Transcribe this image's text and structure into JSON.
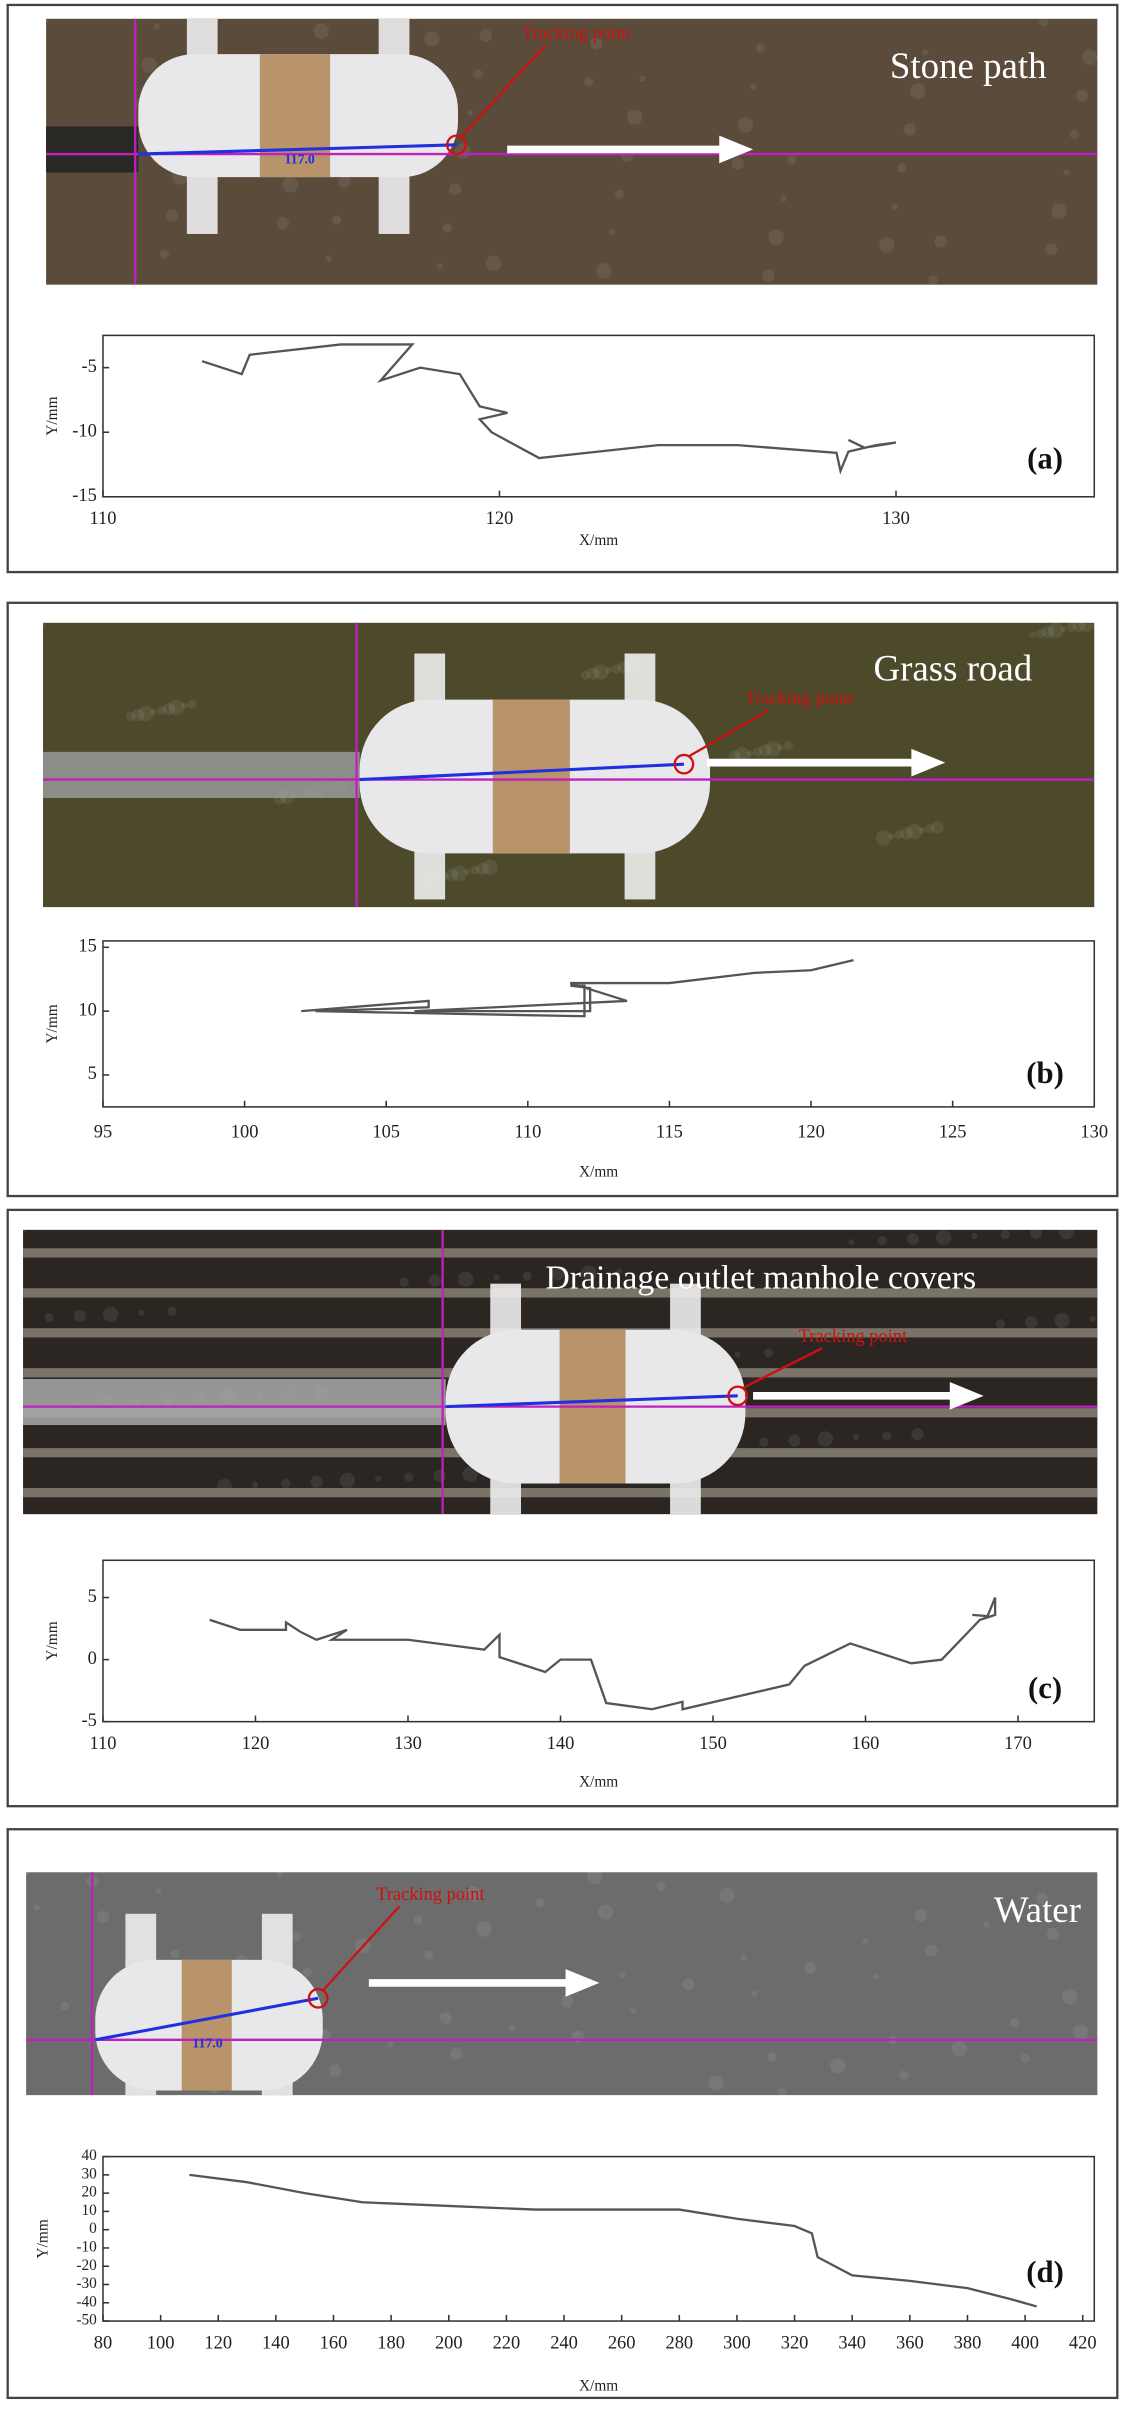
{
  "chart_data": [
    {
      "type": "line",
      "photo_label": "Stone path",
      "tracking_label": "Tracking point",
      "measure_label": "117.0",
      "panel_label": "(a)",
      "x_label": "X/mm",
      "y_label": "Y/mm",
      "color": "#555555",
      "xlim": [
        110,
        135
      ],
      "ylim": [
        -15,
        -2.5
      ],
      "xticks": [
        110,
        120,
        130
      ],
      "yticks": [
        -5,
        -10,
        -15
      ],
      "x": [
        112.5,
        113.5,
        113.7,
        116,
        117.8,
        117,
        118,
        119,
        119.5,
        120.2,
        119.5,
        119.8,
        121,
        124,
        126,
        128.5,
        128.6,
        128.8,
        129.5,
        130,
        129.2,
        128.8
      ],
      "values": [
        -4.5,
        -5.5,
        -4,
        -3.2,
        -3.2,
        -6,
        -5,
        -5.5,
        -8,
        -8.5,
        -9,
        -10,
        -12,
        -11,
        -11,
        -11.6,
        -13,
        -11.5,
        -11,
        -10.8,
        -11.2,
        -10.6
      ]
    },
    {
      "type": "line",
      "photo_label": "Grass road",
      "tracking_label": "Tracking point",
      "panel_label": "(b)",
      "x_label": "X/mm",
      "y_label": "Y/mm",
      "color": "#555555",
      "xlim": [
        95,
        130
      ],
      "ylim": [
        2.5,
        15.5
      ],
      "xticks": [
        95,
        100,
        105,
        110,
        115,
        120,
        125,
        130
      ],
      "yticks": [
        5,
        10,
        15
      ],
      "x": [
        102,
        106.5,
        106.5,
        102.5,
        112,
        112,
        111.5,
        112.2,
        112.2,
        106,
        113.5,
        111.5,
        115,
        118,
        120,
        121.5
      ],
      "values": [
        10,
        10.8,
        10.3,
        10,
        9.6,
        12,
        12,
        11.8,
        10,
        10,
        10.8,
        12.2,
        12.2,
        13,
        13.2,
        14
      ]
    },
    {
      "type": "line",
      "photo_label": "Drainage outlet manhole covers",
      "tracking_label": "Tracking point",
      "panel_label": "(c)",
      "x_label": "X/mm",
      "y_label": "Y/mm",
      "color": "#555555",
      "xlim": [
        110,
        175
      ],
      "ylim": [
        -5,
        8
      ],
      "xticks": [
        110,
        120,
        130,
        140,
        150,
        160,
        170
      ],
      "yticks": [
        -5,
        0,
        5
      ],
      "x": [
        117,
        119,
        122,
        122,
        123,
        124,
        126,
        125,
        130,
        135,
        136,
        136,
        139,
        140,
        142,
        143,
        146,
        148,
        148,
        155,
        156,
        159,
        163,
        165,
        167.5,
        168.5,
        168.5,
        168,
        167
      ],
      "values": [
        3.2,
        2.4,
        2.4,
        3,
        2.2,
        1.6,
        2.4,
        1.6,
        1.6,
        0.8,
        2,
        0.2,
        -1,
        0,
        0,
        -3.5,
        -4,
        -3.4,
        -4,
        -2,
        -0.5,
        1.3,
        -0.3,
        0,
        3.2,
        3.6,
        5,
        3.5,
        3.6
      ]
    },
    {
      "type": "line",
      "photo_label": "Water",
      "tracking_label": "Tracking point",
      "measure_label": "117.0",
      "panel_label": "(d)",
      "x_label": "X/mm",
      "y_label": "Y/mm",
      "color": "#555555",
      "xlim": [
        80,
        424
      ],
      "ylim": [
        -50,
        40
      ],
      "xticks": [
        80,
        100,
        120,
        140,
        160,
        180,
        200,
        220,
        240,
        260,
        280,
        300,
        320,
        340,
        360,
        380,
        400,
        420
      ],
      "yticks": [
        40,
        30,
        20,
        10,
        0,
        -10,
        -20,
        -30,
        -40,
        -50
      ],
      "x": [
        110,
        130,
        150,
        170,
        200,
        230,
        280,
        300,
        320,
        326,
        328,
        340,
        360,
        380,
        395,
        404
      ],
      "values": [
        30,
        26,
        20,
        15,
        13,
        11,
        11,
        6,
        2,
        -2,
        -15,
        -25,
        -28,
        -32,
        -38,
        -42
      ]
    }
  ]
}
